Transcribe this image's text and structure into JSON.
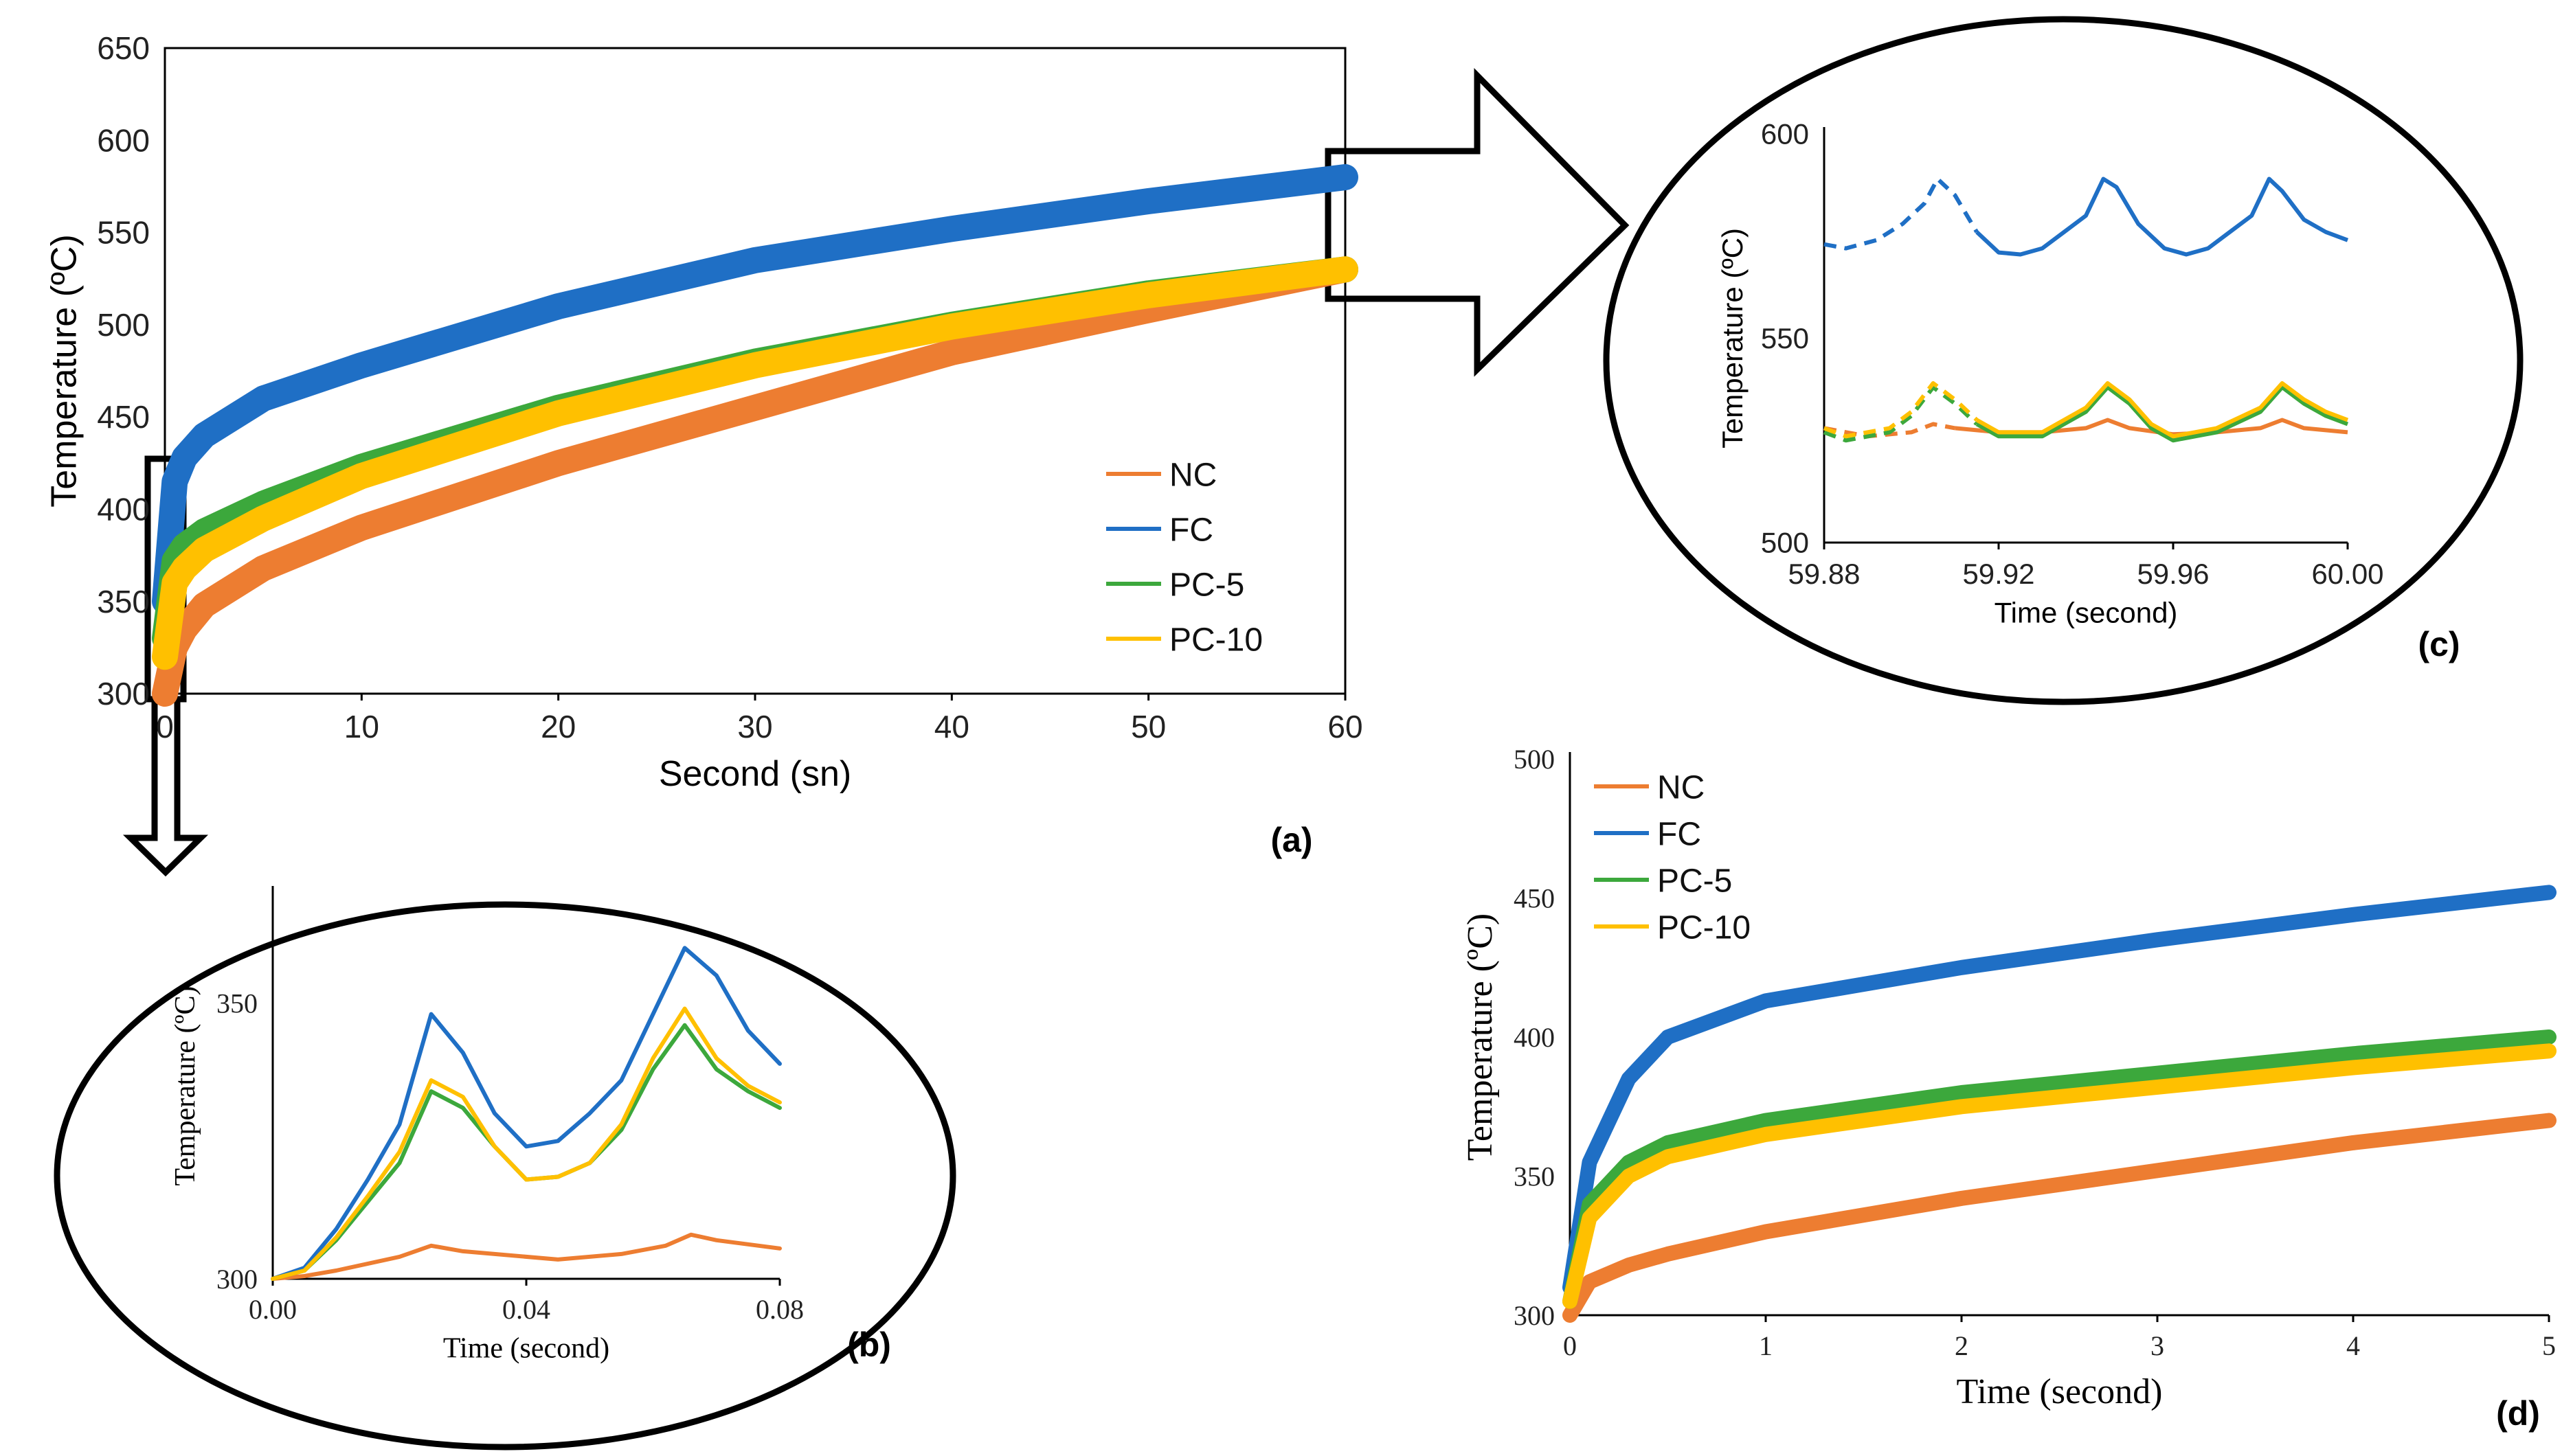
{
  "colors": {
    "NC": "#ED7D31",
    "FC": "#1F6FC5",
    "PC-5": "#3CA83C",
    "PC-10": "#FFC000",
    "axis": "#000000",
    "frame": "#000000"
  },
  "chart_data": [
    {
      "id": "a",
      "panel_label": "(a)",
      "type": "line",
      "title": "",
      "xlabel": "Second (sn)",
      "ylabel": "Temperature (ºC)",
      "xlim": [
        0,
        60
      ],
      "ylim": [
        300,
        650
      ],
      "xticks": [
        0,
        10,
        20,
        30,
        40,
        50,
        60
      ],
      "yticks": [
        300,
        350,
        400,
        450,
        500,
        550,
        600,
        650
      ],
      "legend": [
        "NC",
        "FC",
        "PC-5",
        "PC-10"
      ],
      "legend_position": "bottom-right",
      "series": [
        {
          "name": "NC",
          "x": [
            0,
            0.5,
            1,
            2,
            5,
            10,
            20,
            30,
            40,
            50,
            60
          ],
          "values": [
            300,
            325,
            335,
            348,
            368,
            390,
            425,
            455,
            485,
            508,
            530
          ]
        },
        {
          "name": "FC",
          "x": [
            0,
            0.5,
            1,
            2,
            5,
            10,
            20,
            30,
            40,
            50,
            60
          ],
          "values": [
            350,
            415,
            428,
            440,
            460,
            478,
            510,
            535,
            552,
            567,
            580
          ]
        },
        {
          "name": "PC-5",
          "x": [
            0,
            0.5,
            1,
            2,
            5,
            10,
            20,
            30,
            40,
            50,
            60
          ],
          "values": [
            330,
            372,
            380,
            388,
            403,
            423,
            455,
            480,
            500,
            517,
            530
          ]
        },
        {
          "name": "PC-10",
          "x": [
            0,
            0.5,
            1,
            2,
            5,
            10,
            20,
            30,
            40,
            50,
            60
          ],
          "values": [
            320,
            360,
            368,
            378,
            395,
            418,
            452,
            478,
            499,
            516,
            530
          ]
        }
      ]
    },
    {
      "id": "b",
      "panel_label": "(b)",
      "type": "line",
      "xlabel": "Time (second)",
      "ylabel": "Temperature (ºC)",
      "xlim": [
        0,
        0.08
      ],
      "ylim": [
        300,
        370
      ],
      "xticks": [
        0,
        0.04,
        0.08
      ],
      "xtick_labels": [
        "0.00",
        "0.04",
        "0.08"
      ],
      "yticks": [
        300,
        350
      ],
      "series": [
        {
          "name": "NC",
          "x": [
            0,
            0.005,
            0.01,
            0.02,
            0.025,
            0.03,
            0.045,
            0.055,
            0.062,
            0.066,
            0.07,
            0.08
          ],
          "values": [
            300,
            300.5,
            301.5,
            304,
            306,
            305,
            303.5,
            304.5,
            306,
            308,
            307,
            305.5
          ]
        },
        {
          "name": "FC",
          "x": [
            0,
            0.005,
            0.01,
            0.015,
            0.02,
            0.025,
            0.03,
            0.035,
            0.04,
            0.045,
            0.05,
            0.055,
            0.06,
            0.065,
            0.07,
            0.075,
            0.08
          ],
          "values": [
            300,
            302,
            309,
            318,
            328,
            348,
            341,
            330,
            324,
            325,
            330,
            336,
            348,
            360,
            355,
            345,
            339
          ]
        },
        {
          "name": "PC-5",
          "x": [
            0,
            0.005,
            0.01,
            0.015,
            0.02,
            0.025,
            0.03,
            0.035,
            0.04,
            0.045,
            0.05,
            0.055,
            0.06,
            0.065,
            0.07,
            0.075,
            0.08
          ],
          "values": [
            300,
            301.5,
            307,
            314,
            321,
            334,
            331,
            324,
            318,
            318.5,
            321,
            327,
            338,
            346,
            338,
            334,
            331
          ]
        },
        {
          "name": "PC-10",
          "x": [
            0,
            0.005,
            0.01,
            0.015,
            0.02,
            0.025,
            0.03,
            0.035,
            0.04,
            0.045,
            0.05,
            0.055,
            0.06,
            0.065,
            0.07,
            0.075,
            0.08
          ],
          "values": [
            300,
            301.5,
            307.5,
            315,
            323,
            336,
            333,
            324,
            318,
            318.5,
            321,
            328,
            340,
            349,
            340,
            335,
            332
          ]
        }
      ]
    },
    {
      "id": "c",
      "panel_label": "(c)",
      "type": "line",
      "xlabel": "Time (second)",
      "ylabel": "Temperature (ºC)",
      "xlim": [
        59.88,
        60.0
      ],
      "ylim": [
        500,
        600
      ],
      "xticks": [
        59.88,
        59.92,
        59.96,
        60.0
      ],
      "xtick_labels": [
        "59.88",
        "59.92",
        "59.96",
        "60.00"
      ],
      "yticks": [
        500,
        550,
        600
      ],
      "dashed_until_x": 59.915,
      "series": [
        {
          "name": "FC",
          "x": [
            59.88,
            59.885,
            59.892,
            59.898,
            59.903,
            59.906,
            59.91,
            59.915,
            59.92,
            59.925,
            59.93,
            59.935,
            59.94,
            59.944,
            59.947,
            59.952,
            59.958,
            59.963,
            59.968,
            59.973,
            59.978,
            59.982,
            59.985,
            59.99,
            59.995,
            60.0
          ],
          "values": [
            573,
            572,
            574,
            578,
            583,
            589,
            585,
            576,
            571,
            570.5,
            572,
            576,
            580,
            589,
            587,
            578,
            572,
            570.5,
            572,
            576,
            580,
            589,
            586,
            579,
            576,
            574
          ]
        },
        {
          "name": "NC",
          "x": [
            59.88,
            59.89,
            59.9,
            59.905,
            59.91,
            59.92,
            59.93,
            59.94,
            59.945,
            59.95,
            59.96,
            59.97,
            59.98,
            59.985,
            59.99,
            60.0
          ],
          "values": [
            528,
            526,
            527,
            529,
            528,
            527,
            527,
            528,
            530,
            528,
            526.5,
            527,
            528,
            530,
            528,
            527
          ]
        },
        {
          "name": "PC-5",
          "x": [
            59.88,
            59.885,
            59.895,
            59.9,
            59.905,
            59.91,
            59.915,
            59.92,
            59.93,
            59.94,
            59.945,
            59.95,
            59.955,
            59.96,
            59.97,
            59.98,
            59.985,
            59.99,
            59.995,
            60.0
          ],
          "values": [
            527,
            525,
            527,
            531,
            538,
            534,
            529,
            526,
            526,
            532,
            538,
            534,
            528,
            525,
            527,
            532,
            538,
            534,
            531,
            529
          ]
        },
        {
          "name": "PC-10",
          "x": [
            59.88,
            59.885,
            59.895,
            59.9,
            59.905,
            59.91,
            59.915,
            59.92,
            59.93,
            59.94,
            59.945,
            59.95,
            59.955,
            59.96,
            59.97,
            59.98,
            59.985,
            59.99,
            59.995,
            60.0
          ],
          "values": [
            528,
            526,
            528,
            532,
            539,
            535,
            530,
            527,
            527,
            533,
            539,
            535,
            529,
            526,
            528,
            533,
            539,
            535,
            532,
            530
          ]
        }
      ]
    },
    {
      "id": "d",
      "panel_label": "(d)",
      "type": "line",
      "xlabel": "Time (second)",
      "ylabel": "Temperature (ºC)",
      "xlim": [
        0,
        5
      ],
      "ylim": [
        300,
        500
      ],
      "xticks": [
        0,
        1,
        2,
        3,
        4,
        5
      ],
      "yticks": [
        300,
        350,
        400,
        450,
        500
      ],
      "legend": [
        "NC",
        "FC",
        "PC-5",
        "PC-10"
      ],
      "legend_position": "top-left",
      "series": [
        {
          "name": "NC",
          "x": [
            0,
            0.1,
            0.3,
            0.5,
            1,
            2,
            3,
            4,
            5
          ],
          "values": [
            300,
            312,
            318,
            322,
            330,
            342,
            352,
            362,
            370
          ]
        },
        {
          "name": "FC",
          "x": [
            0,
            0.1,
            0.3,
            0.5,
            1,
            2,
            3,
            4,
            5
          ],
          "values": [
            310,
            355,
            385,
            400,
            413,
            425,
            435,
            444,
            452
          ]
        },
        {
          "name": "PC-5",
          "x": [
            0,
            0.1,
            0.3,
            0.5,
            1,
            2,
            3,
            4,
            5
          ],
          "values": [
            305,
            340,
            355,
            362,
            370,
            380,
            387,
            394,
            400
          ]
        },
        {
          "name": "PC-10",
          "x": [
            0,
            0.1,
            0.3,
            0.5,
            1,
            2,
            3,
            4,
            5
          ],
          "values": [
            305,
            335,
            350,
            357,
            365,
            375,
            382,
            389,
            395
          ]
        }
      ]
    }
  ]
}
